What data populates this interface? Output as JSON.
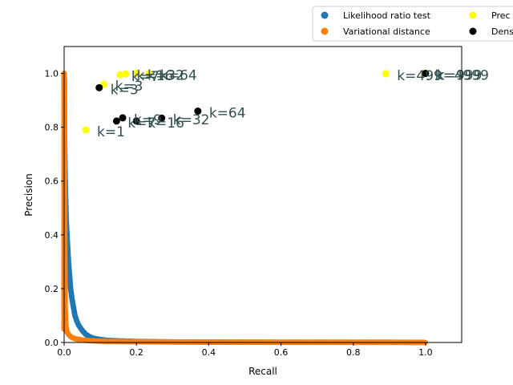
{
  "chart_data": {
    "type": "scatter",
    "title": "",
    "xlabel": "Recall",
    "ylabel": "Precision",
    "xlim": [
      0,
      1.1
    ],
    "ylim": [
      0,
      1.1
    ],
    "x_ticks": [
      "0.0",
      "0.2",
      "0.4",
      "0.6",
      "0.8",
      "1.0"
    ],
    "x_tick_values": [
      0,
      0.2,
      0.4,
      0.6,
      0.8,
      1.0
    ],
    "y_ticks": [
      "0.0",
      "0.2",
      "0.4",
      "0.6",
      "0.8",
      "1.0"
    ],
    "y_tick_values": [
      0,
      0.2,
      0.4,
      0.6,
      0.8,
      1.0
    ],
    "grid": false,
    "legend_position": "top-right outside, clipped",
    "legend": [
      {
        "label": "Likelihood ratio test",
        "color": "#1f77b4"
      },
      {
        "label": "Variational distance",
        "color": "#ff7f0e"
      },
      {
        "label": "Prec",
        "color": "#ffff00"
      },
      {
        "label": "Dens",
        "color": "#000000"
      }
    ],
    "series": [
      {
        "name": "Likelihood ratio test",
        "color": "#1f77b4",
        "curve": [
          [
            0.0,
            0.99
          ],
          [
            0.002,
            0.7
          ],
          [
            0.004,
            0.55
          ],
          [
            0.006,
            0.45
          ],
          [
            0.008,
            0.4
          ],
          [
            0.01,
            0.35
          ],
          [
            0.012,
            0.3
          ],
          [
            0.015,
            0.25
          ],
          [
            0.018,
            0.2
          ],
          [
            0.022,
            0.16
          ],
          [
            0.026,
            0.13
          ],
          [
            0.03,
            0.1
          ],
          [
            0.035,
            0.08
          ],
          [
            0.04,
            0.065
          ],
          [
            0.05,
            0.045
          ],
          [
            0.06,
            0.03
          ],
          [
            0.07,
            0.022
          ],
          [
            0.08,
            0.016
          ],
          [
            0.1,
            0.011
          ],
          [
            0.12,
            0.008
          ],
          [
            0.15,
            0.006
          ],
          [
            0.2,
            0.004
          ],
          [
            0.25,
            0.003
          ],
          [
            0.3,
            0.002
          ],
          [
            0.4,
            0.0015
          ],
          [
            0.5,
            0.001
          ],
          [
            0.7,
            0.0007
          ],
          [
            1.0,
            0.0005
          ]
        ]
      },
      {
        "name": "Variational distance",
        "color": "#ff7f0e",
        "curve": [
          [
            0.0,
            1.0
          ],
          [
            0.0,
            0.05
          ],
          [
            0.001,
            0.98
          ],
          [
            0.0015,
            0.6
          ],
          [
            0.002,
            0.3
          ],
          [
            0.003,
            0.12
          ],
          [
            0.005,
            0.06
          ],
          [
            0.008,
            0.04
          ],
          [
            0.012,
            0.03
          ],
          [
            0.02,
            0.02
          ],
          [
            0.03,
            0.014
          ],
          [
            0.05,
            0.009
          ],
          [
            0.08,
            0.006
          ],
          [
            0.12,
            0.004
          ],
          [
            0.2,
            0.003
          ],
          [
            0.3,
            0.002
          ],
          [
            0.5,
            0.0015
          ],
          [
            0.7,
            0.001
          ],
          [
            0.9,
            0.0008
          ],
          [
            0.97,
            0.0005
          ],
          [
            1.0,
            0.0
          ]
        ]
      },
      {
        "name": "Prec",
        "color": "#ffff00",
        "points": [
          {
            "x": 0.06,
            "y": 0.79,
            "label": "k=1"
          },
          {
            "x": 0.11,
            "y": 0.96,
            "label": "k=3"
          },
          {
            "x": 0.155,
            "y": 0.995,
            "label": "k=7"
          },
          {
            "x": 0.17,
            "y": 0.998,
            "label": "k=16"
          },
          {
            "x": 0.2,
            "y": 1.0,
            "label": "k=32"
          },
          {
            "x": 0.235,
            "y": 1.0,
            "label": "k=64"
          },
          {
            "x": 0.89,
            "y": 0.999,
            "label": "k=499"
          },
          {
            "x": 0.995,
            "y": 1.0,
            "label": "k=4999"
          }
        ]
      },
      {
        "name": "Dens",
        "color": "#000000",
        "points": [
          {
            "x": 0.097,
            "y": 0.947,
            "label": "k=3"
          },
          {
            "x": 0.145,
            "y": 0.823,
            "label": "k=7"
          },
          {
            "x": 0.162,
            "y": 0.835,
            "label": "k=9"
          },
          {
            "x": 0.2,
            "y": 0.823,
            "label": "k=16"
          },
          {
            "x": 0.27,
            "y": 0.834,
            "label": "k=32"
          },
          {
            "x": 0.37,
            "y": 0.86,
            "label": "k=64"
          },
          {
            "x": 1.0,
            "y": 1.0,
            "label": "k=999"
          }
        ]
      }
    ]
  }
}
